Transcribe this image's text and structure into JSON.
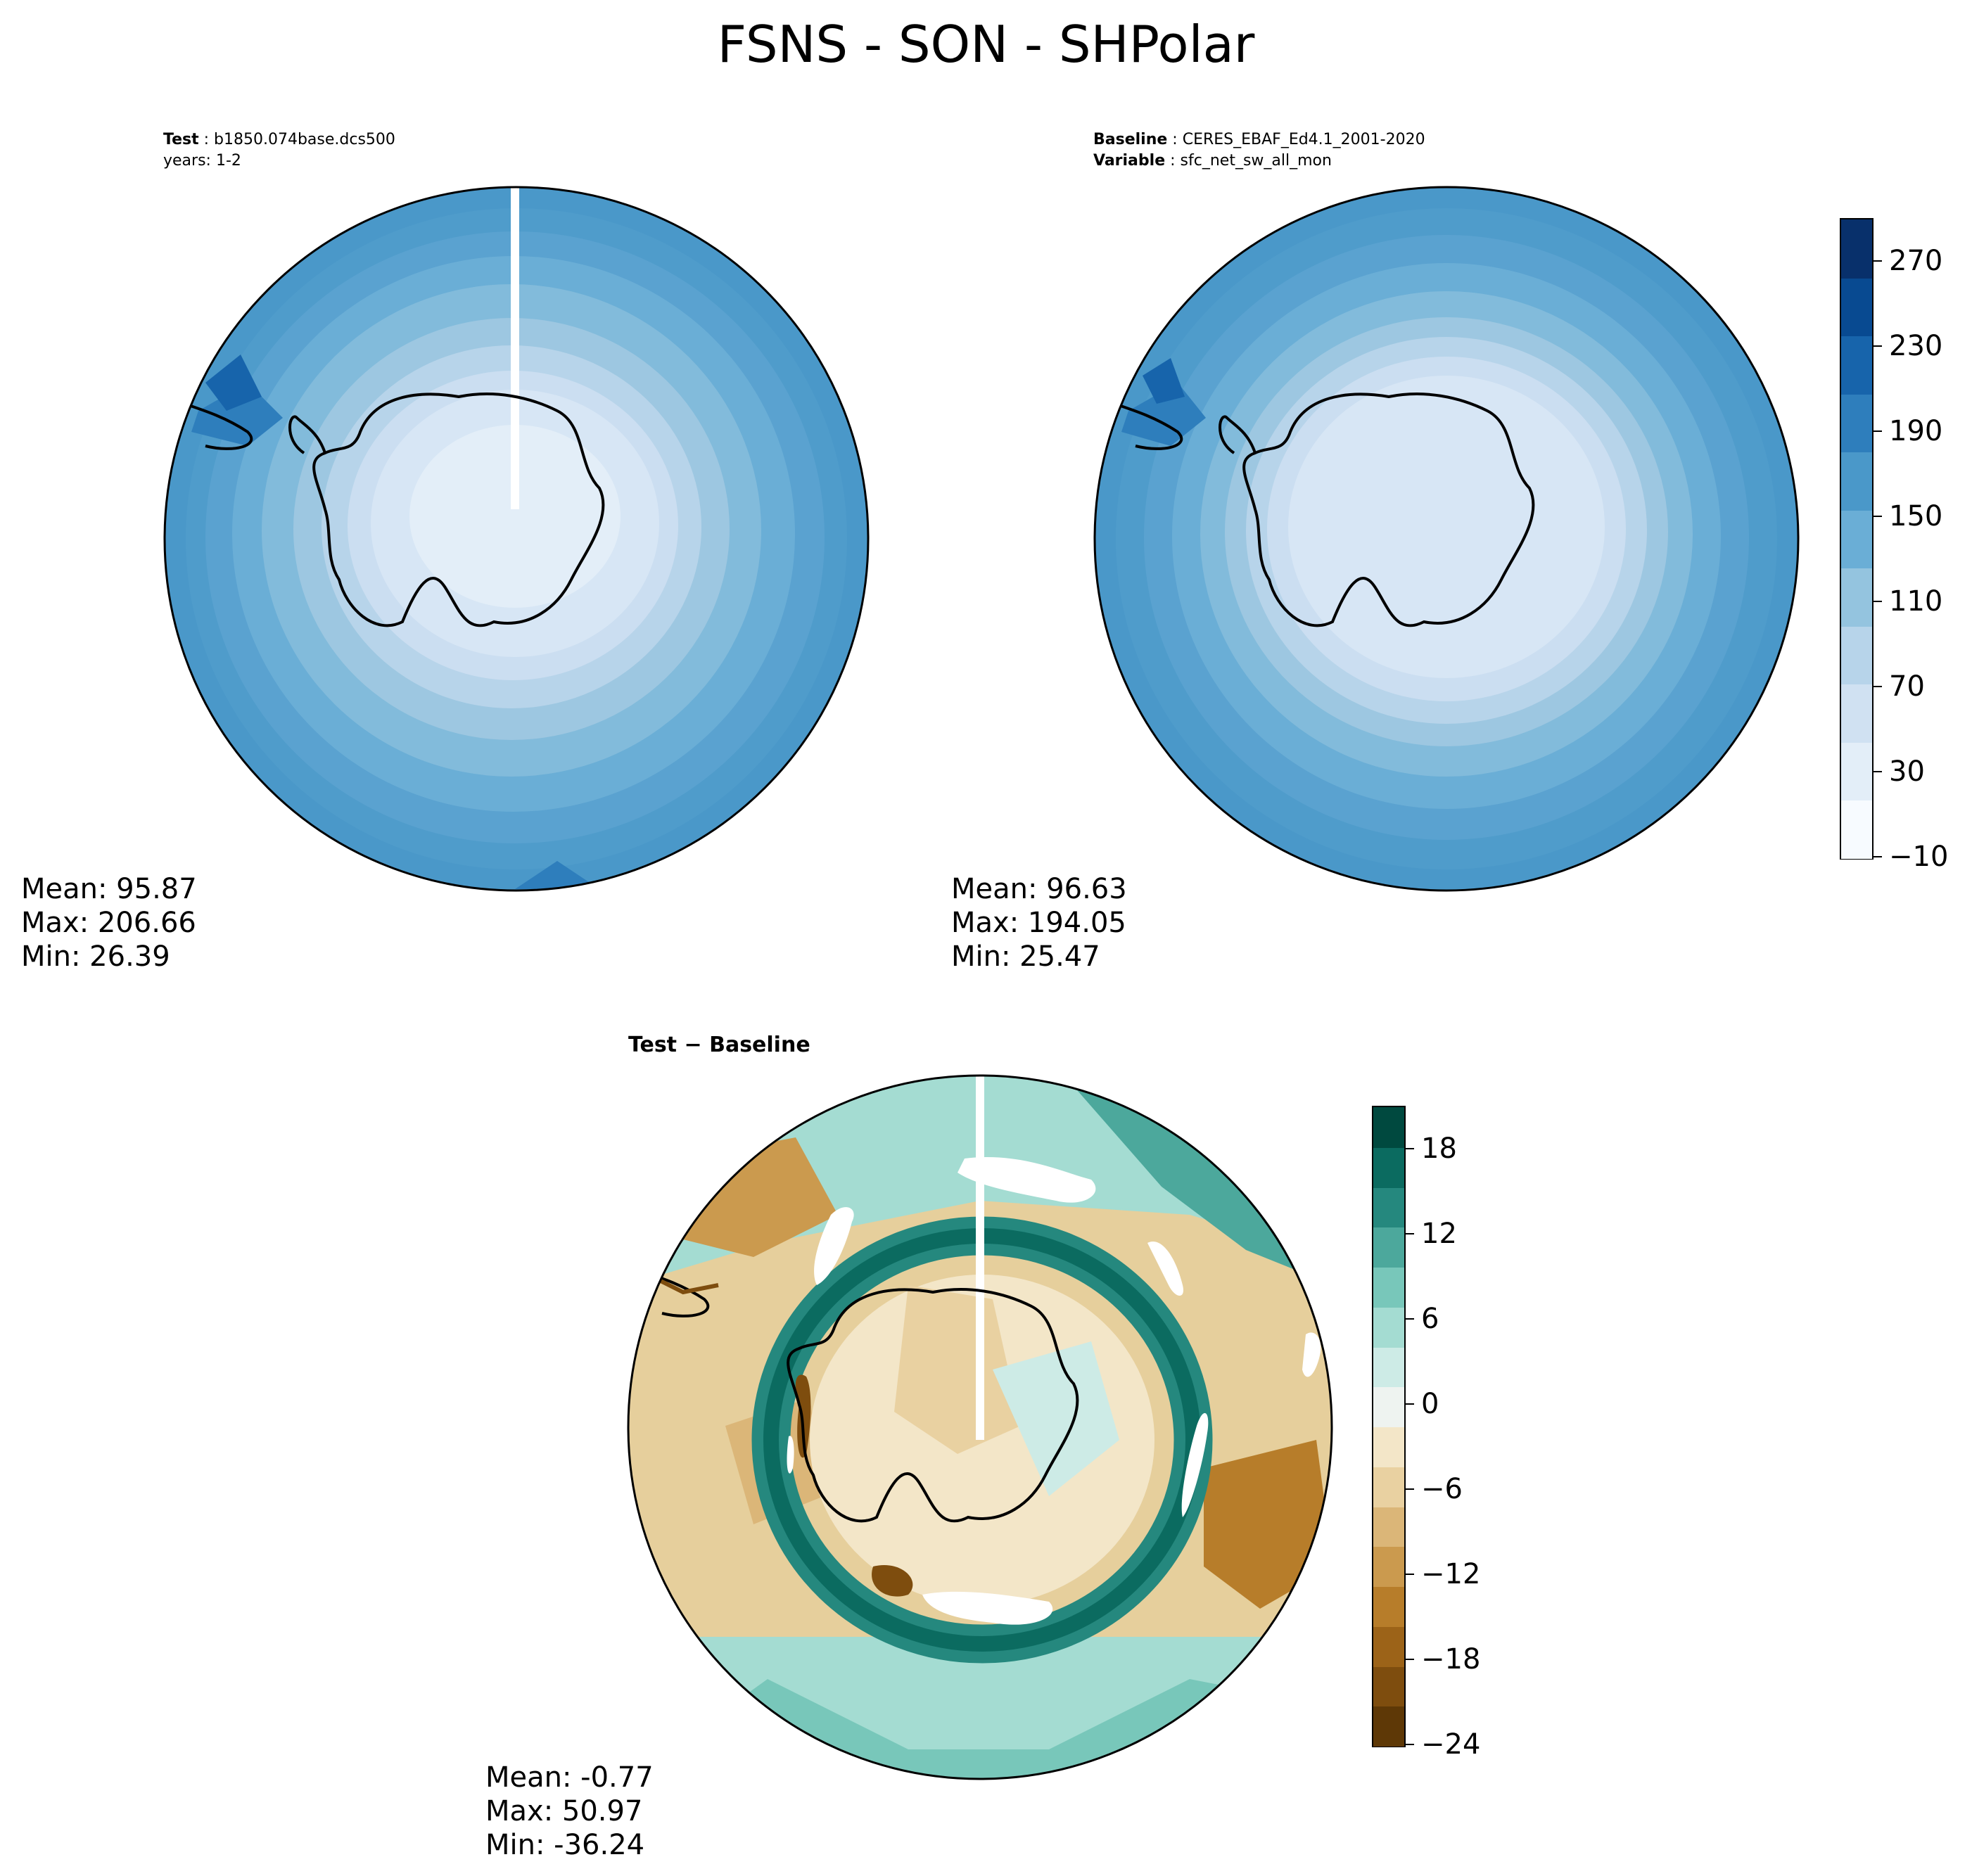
{
  "figure": {
    "title": "FSNS - SON - SHPolar"
  },
  "test_panel": {
    "label_bold": "Test",
    "label_text": "b1850.074base.dcs500",
    "years_line": "years: 1-2",
    "mean": "Mean: 95.87",
    "max": "Max: 206.66",
    "min": "Min: 26.39"
  },
  "baseline_panel": {
    "label_bold": "Baseline",
    "label_text": "CERES_EBAF_Ed4.1_2001-2020",
    "variable_bold": "Variable",
    "variable_text": "sfc_net_sw_all_mon",
    "mean": "Mean: 96.63",
    "max": "Max: 194.05",
    "min": "Min: 25.47"
  },
  "diff_panel": {
    "title_left": "Test",
    "title_sep": "−",
    "title_right": "Baseline",
    "mean": "Mean: -0.77",
    "max": "Max: 50.97",
    "min": "Min: -36.24"
  },
  "chart_data": [
    {
      "type": "heatmap",
      "name": "test",
      "projection": "south polar stereographic",
      "statistics": {
        "mean": 95.87,
        "max": 206.66,
        "min": 26.39
      },
      "colormap": "blues",
      "levels_range": [
        -10,
        290
      ]
    },
    {
      "type": "heatmap",
      "name": "baseline",
      "projection": "south polar stereographic",
      "statistics": {
        "mean": 96.63,
        "max": 194.05,
        "min": 25.47
      },
      "colormap": "blues",
      "levels_range": [
        -10,
        290
      ]
    },
    {
      "type": "heatmap",
      "name": "difference",
      "projection": "south polar stereographic",
      "statistics": {
        "mean": -0.77,
        "max": 50.97,
        "min": -36.24
      },
      "colormap": "brown-white-teal diverging",
      "levels_range": [
        -24,
        21
      ]
    }
  ],
  "colorbar_main": {
    "ticks": [
      "270",
      "230",
      "190",
      "150",
      "110",
      "70",
      "30",
      "−10"
    ],
    "tick_values": [
      270,
      230,
      190,
      150,
      110,
      70,
      30,
      -10
    ],
    "range": [
      -10,
      290
    ],
    "colors": [
      "#f7fbff",
      "#e3eef8",
      "#d0e1f2",
      "#b7d4ea",
      "#94c4df",
      "#6aaed6",
      "#4a98c9",
      "#2e7ebc",
      "#1764ab",
      "#084a91",
      "#08306b"
    ]
  },
  "colorbar_diff": {
    "ticks": [
      "18",
      "12",
      "6",
      "0",
      "−6",
      "−12",
      "−18",
      "−24"
    ],
    "tick_values": [
      18,
      12,
      6,
      0,
      -6,
      -12,
      -18,
      -24
    ],
    "range": [
      -24,
      21
    ],
    "colors": [
      "#5e3806",
      "#7e4d0e",
      "#9c6318",
      "#b77d2a",
      "#cb9a4e",
      "#dbb678",
      "#e9d1a1",
      "#f3e6c8",
      "#eef3f0",
      "#cdebe6",
      "#a4dcd2",
      "#78c7ba",
      "#4ca89c",
      "#25887e",
      "#0b6b60",
      "#00493f"
    ]
  }
}
